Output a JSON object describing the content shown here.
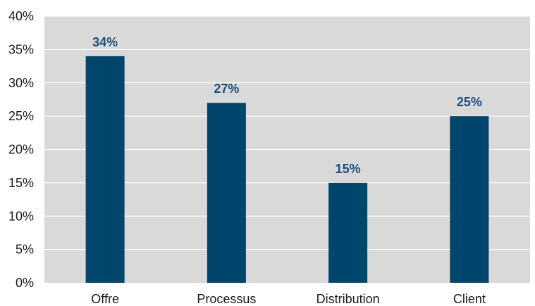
{
  "chart_data": {
    "type": "bar",
    "categories": [
      "Offre",
      "Processus",
      "Distribution",
      "Client"
    ],
    "values": [
      34,
      27,
      15,
      25
    ],
    "data_labels": [
      "34%",
      "27%",
      "15%",
      "25%"
    ],
    "yticks": [
      "0%",
      "5%",
      "10%",
      "15%",
      "20%",
      "25%",
      "30%",
      "35%",
      "40%"
    ],
    "ylim": [
      0,
      40
    ],
    "ytick_step": 5,
    "grid": true,
    "legend": "none",
    "title": "",
    "xlabel": "",
    "ylabel": "",
    "colors": {
      "bar": "#00456B",
      "plot_background": "#D9D9D9",
      "gridline": "#FFFFFF",
      "data_label": "#1F4E79"
    }
  }
}
